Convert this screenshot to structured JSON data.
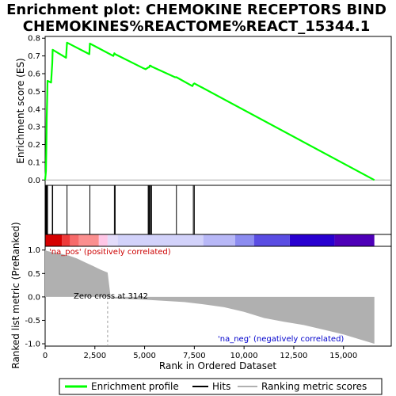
{
  "chart_data": {
    "type": "line",
    "title": "Enrichment plot: CHEMOKINE RECEPTORS BIND CHEMOKINES%REACTOME%REACT_15344.1",
    "title_lines": [
      "Enrichment plot: CHEMOKINE RECEPTORS BIND",
      "CHEMOKINES%REACTOME%REACT_15344.1"
    ],
    "xlabel": "Rank in Ordered Dataset",
    "xlim": [
      0,
      17400
    ],
    "x_ticks": [
      0,
      2500,
      5000,
      7500,
      10000,
      12500,
      15000
    ],
    "x_tick_labels": [
      "0",
      "2,500",
      "5,000",
      "7,500",
      "10,000",
      "12,500",
      "15,000"
    ],
    "es_panel": {
      "ylabel": "Enrichment score (ES)",
      "ylim": [
        -0.03,
        0.81
      ],
      "y_ticks": [
        0.0,
        0.1,
        0.2,
        0.3,
        0.4,
        0.5,
        0.6,
        0.7,
        0.8
      ],
      "y_tick_labels": [
        "0.0",
        "0.1",
        "0.2",
        "0.3",
        "0.4",
        "0.5",
        "0.6",
        "0.7",
        "0.8"
      ],
      "series": [
        {
          "name": "Enrichment profile",
          "color": "#00ff00",
          "x": [
            0,
            40,
            60,
            80,
            100,
            120,
            300,
            360,
            380,
            1050,
            1100,
            2220,
            2250,
            3430,
            3480,
            3520,
            4950,
            5050,
            5180,
            5220,
            5260,
            5300,
            5350,
            6530,
            6600,
            7400,
            7450,
            7500,
            16550
          ],
          "y": [
            0.0,
            0.05,
            0.18,
            0.35,
            0.45,
            0.56,
            0.55,
            0.66,
            0.735,
            0.69,
            0.775,
            0.71,
            0.77,
            0.7,
            0.715,
            0.71,
            0.63,
            0.625,
            0.635,
            0.635,
            0.645,
            0.645,
            0.64,
            0.58,
            0.58,
            0.53,
            0.54,
            0.545,
            0.0
          ]
        }
      ]
    },
    "hits": {
      "name": "Hits",
      "color": "#000000",
      "x": [
        40,
        60,
        80,
        100,
        120,
        360,
        380,
        1100,
        2250,
        3480,
        3520,
        5180,
        5220,
        5260,
        5300,
        5350,
        6600,
        7450,
        7500
      ]
    },
    "color_bar": {
      "segments": [
        {
          "from": 0,
          "to": 850,
          "color": "#d50000"
        },
        {
          "from": 850,
          "to": 1250,
          "color": "#ee3a3a"
        },
        {
          "from": 1250,
          "to": 1700,
          "color": "#f76a6a"
        },
        {
          "from": 1700,
          "to": 2700,
          "color": "#fb8f8f"
        },
        {
          "from": 2700,
          "to": 3142,
          "color": "#ffc6e6"
        },
        {
          "from": 3142,
          "to": 3650,
          "color": "#e3dcfa"
        },
        {
          "from": 3650,
          "to": 7950,
          "color": "#d2d2fa"
        },
        {
          "from": 7950,
          "to": 9550,
          "color": "#b8b8f7"
        },
        {
          "from": 9550,
          "to": 10500,
          "color": "#8c8cf0"
        },
        {
          "from": 10500,
          "to": 12300,
          "color": "#5a4de3"
        },
        {
          "from": 12300,
          "to": 14550,
          "color": "#2800d0"
        },
        {
          "from": 14550,
          "to": 16550,
          "color": "#4e00b8"
        }
      ]
    },
    "metric_panel": {
      "ylabel": "Ranked list metric (PreRanked)",
      "ylim": [
        -1.05,
        1.08
      ],
      "y_ticks": [
        1.0,
        0.5,
        0.0,
        -0.5,
        -1.0
      ],
      "y_tick_labels": [
        "1.0",
        "0.5",
        "0.0",
        "-0.5",
        "-1.0"
      ],
      "series": [
        {
          "name": "Ranking metric scores",
          "color": "#b0b0b0",
          "x": [
            0,
            100,
            400,
            800,
            1200,
            1600,
            2000,
            2400,
            2800,
            3142,
            3300,
            5000,
            7000,
            8000,
            9000,
            10000,
            11000,
            12000,
            13000,
            14000,
            15000,
            16000,
            16550
          ],
          "y": [
            1.0,
            0.98,
            0.95,
            0.92,
            0.88,
            0.82,
            0.74,
            0.66,
            0.58,
            0.52,
            -0.03,
            -0.06,
            -0.11,
            -0.16,
            -0.22,
            -0.32,
            -0.45,
            -0.53,
            -0.6,
            -0.7,
            -0.8,
            -0.93,
            -1.0
          ]
        }
      ],
      "annotations": {
        "positive": "'na_pos' (positively correlated)",
        "zero_cross": "Zero cross at 3142",
        "negative": "'na_neg' (negatively correlated)"
      },
      "zero_cross_x": 3142
    },
    "legend": {
      "position": "bottom",
      "entries": [
        "Enrichment profile",
        "Hits",
        "Ranking metric scores"
      ]
    }
  }
}
